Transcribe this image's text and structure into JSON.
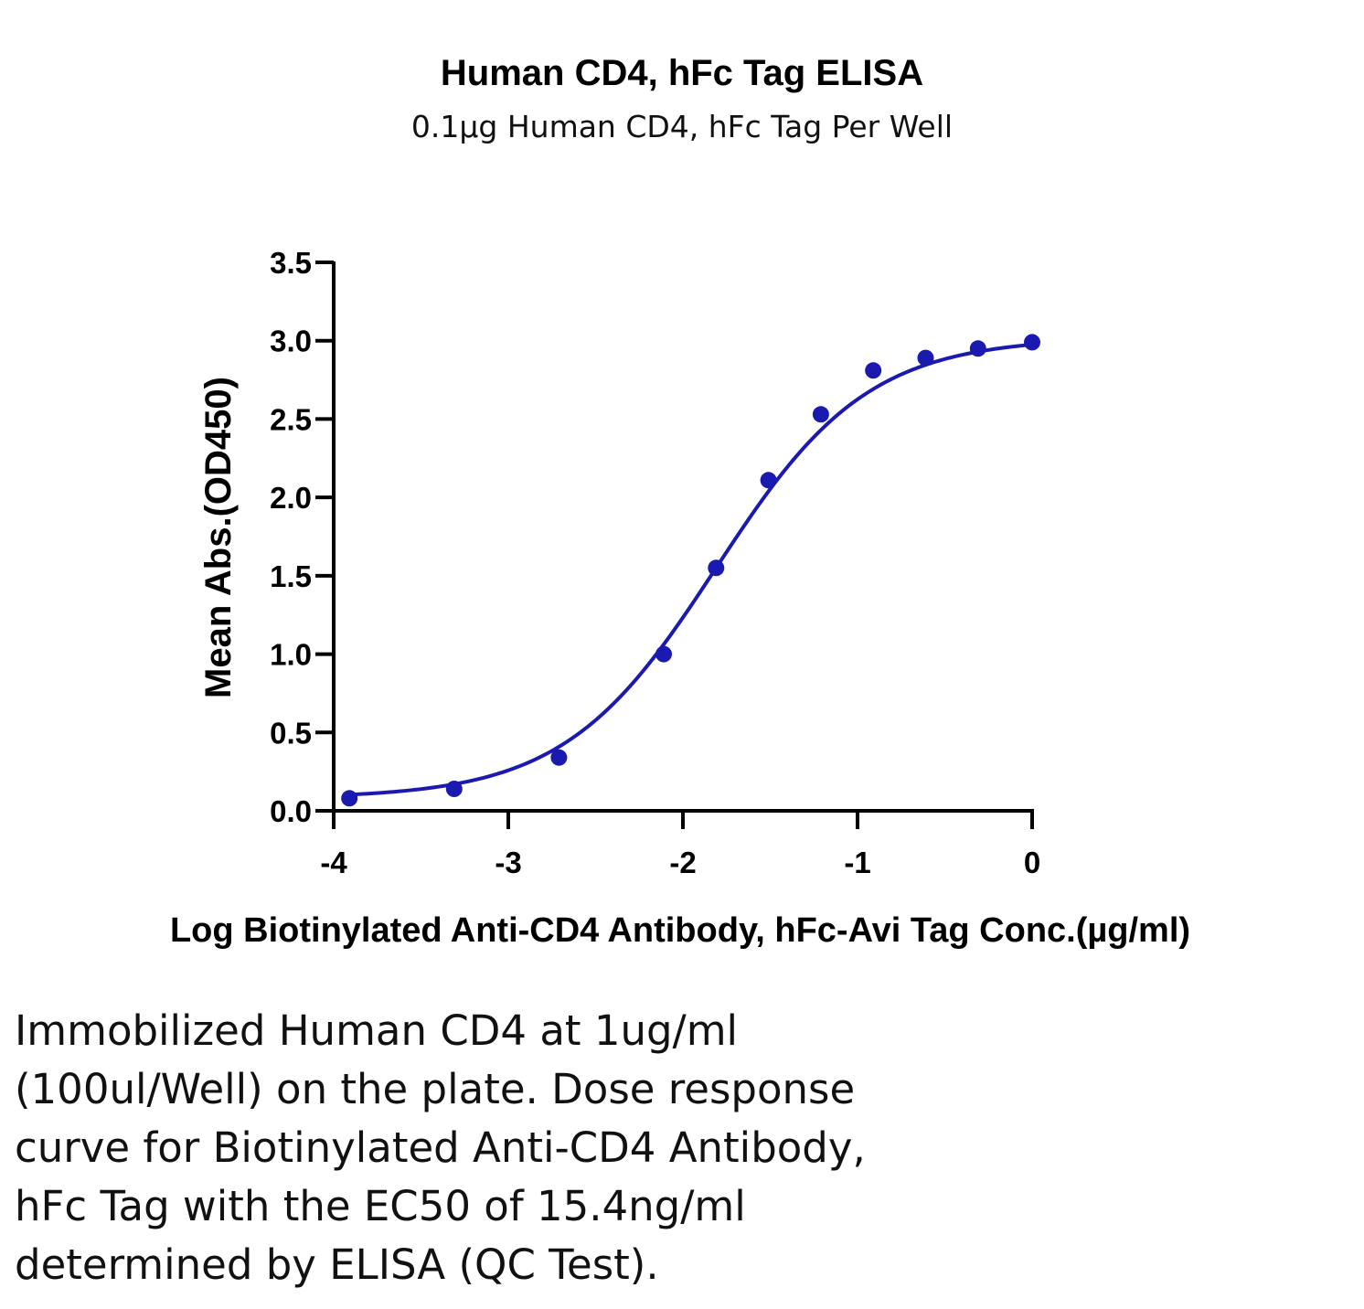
{
  "chart_data": {
    "type": "scatter",
    "title": "Human CD4, hFc Tag ELISA",
    "subtitle": "0.1µg Human CD4, hFc Tag Per Well",
    "xlabel": "Log Biotinylated Anti-CD4 Antibody, hFc-Avi Tag Conc.(µg/ml)",
    "ylabel": "Mean Abs.(OD450)",
    "xlim": [
      -4,
      0
    ],
    "ylim": [
      0,
      3.5
    ],
    "x_ticks": [
      "-4",
      "-3",
      "-2",
      "-1",
      "0"
    ],
    "y_ticks": [
      "0.0",
      "0.5",
      "1.0",
      "1.5",
      "2.0",
      "2.5",
      "3.0",
      "3.5"
    ],
    "grid": false,
    "series": [
      {
        "color": "#1a1ab0",
        "x": [
          -3.91,
          -3.31,
          -2.71,
          -2.11,
          -1.81,
          -1.51,
          -1.21,
          -0.91,
          -0.61,
          -0.31,
          0.0
        ],
        "y": [
          0.08,
          0.14,
          0.34,
          1.0,
          1.55,
          2.11,
          2.53,
          2.81,
          2.89,
          2.95,
          2.99
        ]
      }
    ],
    "fit_curve": {
      "type": "4PL",
      "bottom": 0.08,
      "top": 3.02,
      "log_ec50": -1.81,
      "hill": 1.0
    }
  },
  "caption": "Immobilized Human CD4 at 1ug/ml\n(100ul/Well) on the plate. Dose response\ncurve for Biotinylated Anti-CD4 Antibody,\nhFc Tag with the EC50 of 15.4ng/ml\ndetermined by ELISA (QC Test)."
}
